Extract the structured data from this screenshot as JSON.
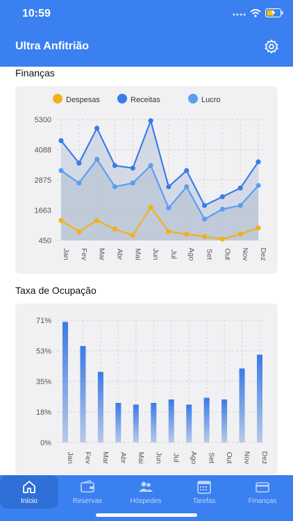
{
  "status": {
    "time": "10:59"
  },
  "app": {
    "title": "Ultra Anfitrião"
  },
  "colors": {
    "header": "#3a80f0",
    "despesas": "#f0b21a",
    "receitas": "#3b7be8",
    "lucro": "#5a9ef2"
  },
  "sections": {
    "financas": "Finanças",
    "ocupacao": "Taxa de Ocupação"
  },
  "chart_data": [
    {
      "type": "line",
      "categories": [
        "Jan",
        "Fev",
        "Mar",
        "Abr",
        "Mai",
        "Jun",
        "Jul",
        "Ago",
        "Set",
        "Out",
        "Nov",
        "Dez"
      ],
      "series": [
        {
          "name": "Despesas",
          "values": [
            1250,
            800,
            1250,
            900,
            650,
            1780,
            800,
            700,
            600,
            500,
            700,
            950
          ]
        },
        {
          "name": "Receitas",
          "values": [
            4450,
            3550,
            4950,
            3450,
            3350,
            5250,
            2600,
            3250,
            1850,
            2200,
            2550,
            3600
          ]
        },
        {
          "name": "Lucro",
          "values": [
            3250,
            2750,
            3700,
            2600,
            2750,
            3450,
            1750,
            2600,
            1300,
            1700,
            1850,
            2650
          ]
        }
      ],
      "yticks": [
        "5300",
        "4088",
        "2875",
        "1663",
        "450"
      ],
      "ylim": [
        450,
        5300
      ],
      "legend": "top"
    },
    {
      "type": "bar",
      "categories": [
        "Jan",
        "Fev",
        "Mar",
        "Abr",
        "Mai",
        "Jun",
        "Jul",
        "Ago",
        "Set",
        "Out",
        "Nov",
        "Dez"
      ],
      "values": [
        70,
        56,
        41,
        23,
        22,
        23,
        25,
        22,
        26,
        25,
        43,
        51
      ],
      "yticks": [
        "71%",
        "53%",
        "35%",
        "18%",
        "0%"
      ],
      "ylim": [
        0,
        71
      ]
    }
  ],
  "tabs": [
    {
      "label": "Início",
      "icon": "home-icon",
      "active": true
    },
    {
      "label": "Reservas",
      "icon": "wallet-icon"
    },
    {
      "label": "Hóspedes",
      "icon": "guests-icon"
    },
    {
      "label": "Tarefas",
      "icon": "calendar-icon"
    },
    {
      "label": "Finanças",
      "icon": "card-icon"
    }
  ]
}
